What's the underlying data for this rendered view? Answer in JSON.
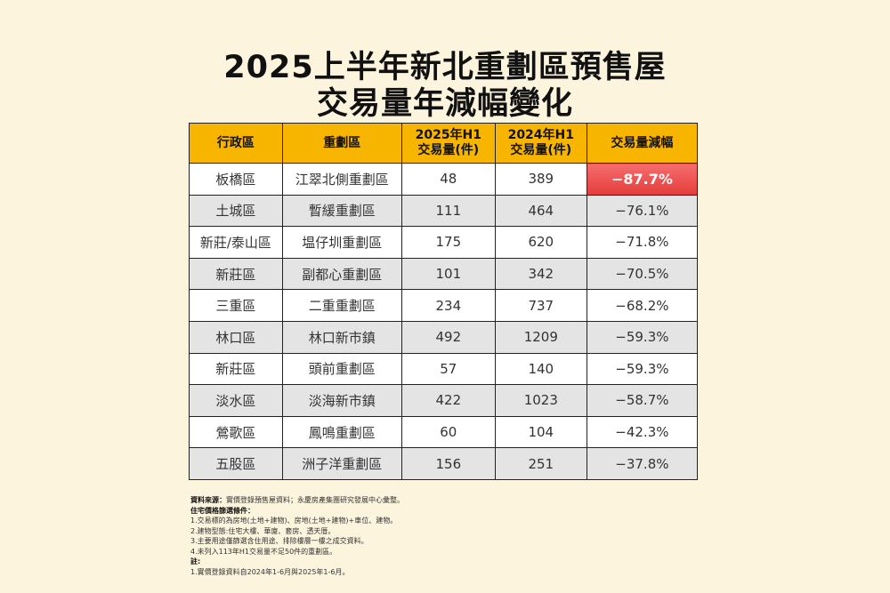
{
  "title": [
    "2025上半年新北重劃區預售屋",
    "交易量年減幅變化"
  ],
  "table": {
    "header": [
      [
        "行政區"
      ],
      [
        "重劃區"
      ],
      [
        "2025年H1",
        "交易量(件)"
      ],
      [
        "2024年H1",
        "交易量(件)"
      ],
      [
        "交易量減幅"
      ]
    ],
    "rows": [
      [
        "板橋區",
        "江翠北側重劃區",
        48,
        389,
        "−87.7%"
      ],
      [
        "土城區",
        "暫緩重劃區",
        111,
        464,
        "−76.1%"
      ],
      [
        "新莊/泰山區",
        "塭仔圳重劃區",
        175,
        620,
        "−71.8%"
      ],
      [
        "新莊區",
        "副都心重劃區",
        101,
        342,
        "−70.5%"
      ],
      [
        "三重區",
        "二重重劃區",
        234,
        737,
        "−68.2%"
      ],
      [
        "林口區",
        "林口新市鎮",
        492,
        1209,
        "−59.3%"
      ],
      [
        "新莊區",
        "頭前重劃區",
        57,
        140,
        "−59.3%"
      ],
      [
        "淡水區",
        "淡海新市鎮",
        422,
        1023,
        "−58.7%"
      ],
      [
        "鶯歌區",
        "鳳鳴重劃區",
        60,
        104,
        "−42.3%"
      ],
      [
        "五股區",
        "洲子洋重劃區",
        156,
        251,
        "−37.8%"
      ]
    ]
  },
  "notes": {
    "source_label": "資料來源：",
    "source_text": "實價登錄預售屋資料；永慶房產集團研究發展中心彙整。",
    "criteria_label": "住宅價格篩選條件：",
    "criteria": [
      "1.交易標的為房地(土地+建物)、房地(土地+建物)+車位、建物。",
      "2.建物型態:住宅大樓、華廈、套房、透天厝。",
      "3.主要用途僅篩選含住用途、排除樓層一樓之成交資料。",
      "4.未列入113年H1交易量不足50件的重劃區。"
    ],
    "remark_label": "註:",
    "remarks": [
      "1.實價登錄資料自2024年1-6月與2025年1-6月。"
    ]
  }
}
